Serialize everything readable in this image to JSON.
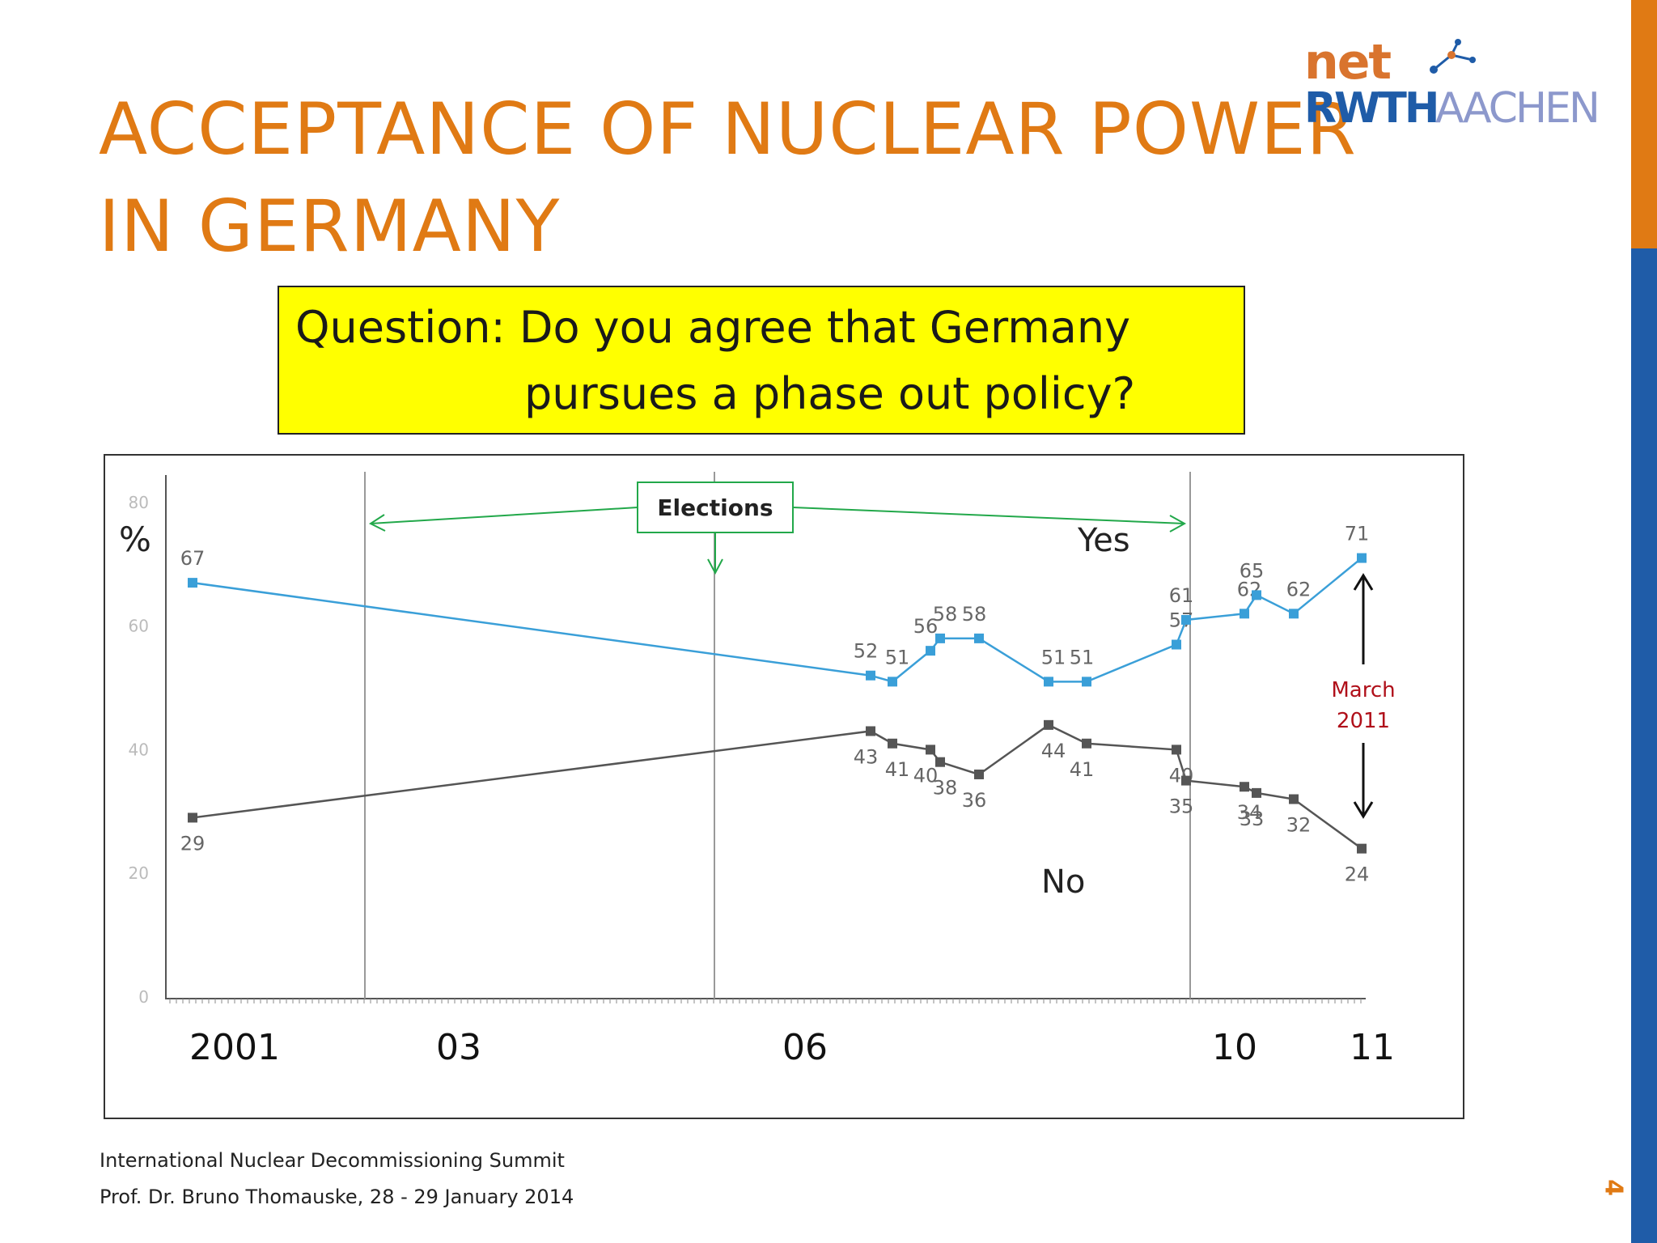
{
  "slide": {
    "title_line1": "ACCEPTANCE OF NUCLEAR POWER",
    "title_line2": "IN GERMANY",
    "question_line1": "Question: Do you agree that Germany",
    "question_line2": "pursues a phase out policy?",
    "footer_line1": "International Nuclear Decommissioning Summit",
    "footer_line2": "Prof. Dr. Bruno Thomauske, 28 - 29 January 2014",
    "page_number": "4",
    "logo_top": "net",
    "logo_rwth": "RWTH",
    "logo_aachen": "AACHEN"
  },
  "colors": {
    "title": "#E07A14",
    "accent_blue": "#1F5CA8",
    "question_box": "#FFFF00",
    "yes_series": "#3A9FD8",
    "no_series": "#555555",
    "elections": "#22A84A",
    "march_label": "#B0101A"
  },
  "chart_data": {
    "type": "line",
    "y_unit_label": "%",
    "ylim": [
      0,
      80
    ],
    "y_ticks": [
      0,
      20,
      40,
      60,
      80
    ],
    "x_labels": [
      "2001",
      "03",
      "06",
      "10",
      "11"
    ],
    "grid": false,
    "series": [
      {
        "name": "Yes",
        "values": [
          67,
          52,
          51,
          56,
          58,
          58,
          51,
          51,
          57,
          61,
          62,
          65,
          62,
          71
        ]
      },
      {
        "name": "No",
        "values": [
          29,
          43,
          41,
          40,
          38,
          36,
          44,
          41,
          40,
          35,
          34,
          33,
          32,
          24
        ]
      }
    ],
    "annotations": {
      "elections_label": "Elections",
      "march_label_line1": "March",
      "march_label_line2": "2011"
    }
  }
}
